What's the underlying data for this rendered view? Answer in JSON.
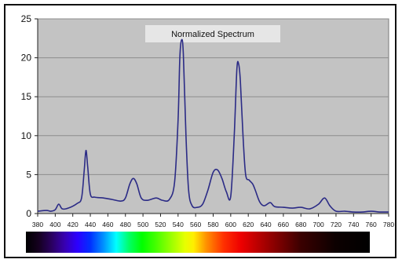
{
  "chart_data": {
    "type": "line",
    "title": "Normalized Spectrum",
    "xlabel": "",
    "ylabel": "",
    "xlim": [
      380,
      780
    ],
    "ylim": [
      0,
      25
    ],
    "x_ticks": [
      380,
      400,
      420,
      440,
      460,
      480,
      500,
      520,
      540,
      560,
      580,
      600,
      620,
      640,
      660,
      680,
      700,
      720,
      740,
      760,
      780
    ],
    "y_ticks": [
      0,
      5,
      10,
      15,
      20,
      25
    ],
    "grid": "horizontal",
    "legend": "none",
    "series": [
      {
        "color": "#2b2b86",
        "points": [
          [
            380,
            0.3
          ],
          [
            390,
            0.4
          ],
          [
            395,
            0.3
          ],
          [
            400,
            0.5
          ],
          [
            404,
            1.2
          ],
          [
            408,
            0.6
          ],
          [
            415,
            0.7
          ],
          [
            425,
            1.3
          ],
          [
            430,
            2.0
          ],
          [
            433,
            5.5
          ],
          [
            435,
            8.1
          ],
          [
            437,
            6.0
          ],
          [
            440,
            2.5
          ],
          [
            445,
            2.1
          ],
          [
            455,
            2.0
          ],
          [
            465,
            1.8
          ],
          [
            475,
            1.6
          ],
          [
            480,
            2.0
          ],
          [
            485,
            3.8
          ],
          [
            489,
            4.5
          ],
          [
            493,
            3.8
          ],
          [
            498,
            2.0
          ],
          [
            505,
            1.7
          ],
          [
            515,
            2.0
          ],
          [
            522,
            1.7
          ],
          [
            530,
            1.8
          ],
          [
            536,
            4.0
          ],
          [
            540,
            12.0
          ],
          [
            542,
            20.0
          ],
          [
            544,
            22.3
          ],
          [
            546,
            20.5
          ],
          [
            549,
            10.0
          ],
          [
            552,
            3.0
          ],
          [
            556,
            1.0
          ],
          [
            562,
            0.8
          ],
          [
            568,
            1.2
          ],
          [
            574,
            3.0
          ],
          [
            580,
            5.3
          ],
          [
            585,
            5.6
          ],
          [
            590,
            4.5
          ],
          [
            595,
            2.8
          ],
          [
            600,
            2.2
          ],
          [
            604,
            10.0
          ],
          [
            607,
            18.5
          ],
          [
            609,
            19.2
          ],
          [
            611,
            17.0
          ],
          [
            614,
            10.0
          ],
          [
            617,
            5.0
          ],
          [
            621,
            4.3
          ],
          [
            625,
            3.8
          ],
          [
            628,
            3.0
          ],
          [
            633,
            1.5
          ],
          [
            638,
            1.0
          ],
          [
            645,
            1.4
          ],
          [
            650,
            0.9
          ],
          [
            660,
            0.8
          ],
          [
            670,
            0.7
          ],
          [
            680,
            0.8
          ],
          [
            690,
            0.6
          ],
          [
            700,
            1.2
          ],
          [
            707,
            2.0
          ],
          [
            713,
            1.0
          ],
          [
            720,
            0.3
          ],
          [
            730,
            0.3
          ],
          [
            740,
            0.2
          ],
          [
            750,
            0.2
          ],
          [
            760,
            0.3
          ],
          [
            770,
            0.2
          ],
          [
            780,
            0.2
          ]
        ]
      }
    ],
    "colors": {
      "plot_background": "#c3c3c3",
      "gridline": "#8c8c8c",
      "title_box": "#e6e6e6",
      "line": "#2b2b86"
    },
    "color_bar": {
      "spectrum_stops": [
        {
          "nm": 380,
          "color": "#000000"
        },
        {
          "nm": 395,
          "color": "#150020"
        },
        {
          "nm": 410,
          "color": "#2a0060"
        },
        {
          "nm": 425,
          "color": "#3800b0"
        },
        {
          "nm": 440,
          "color": "#2c00ff"
        },
        {
          "nm": 455,
          "color": "#0030ff"
        },
        {
          "nm": 470,
          "color": "#0090ff"
        },
        {
          "nm": 485,
          "color": "#00ffff"
        },
        {
          "nm": 500,
          "color": "#00ff66"
        },
        {
          "nm": 515,
          "color": "#00ff00"
        },
        {
          "nm": 530,
          "color": "#40ff00"
        },
        {
          "nm": 550,
          "color": "#a0ff00"
        },
        {
          "nm": 565,
          "color": "#e6ff00"
        },
        {
          "nm": 575,
          "color": "#ffee00"
        },
        {
          "nm": 590,
          "color": "#ff9000"
        },
        {
          "nm": 610,
          "color": "#ff3000"
        },
        {
          "nm": 630,
          "color": "#ee0000"
        },
        {
          "nm": 660,
          "color": "#a00000"
        },
        {
          "nm": 700,
          "color": "#3a0000"
        },
        {
          "nm": 740,
          "color": "#0c0000"
        },
        {
          "nm": 780,
          "color": "#000000"
        }
      ]
    }
  }
}
